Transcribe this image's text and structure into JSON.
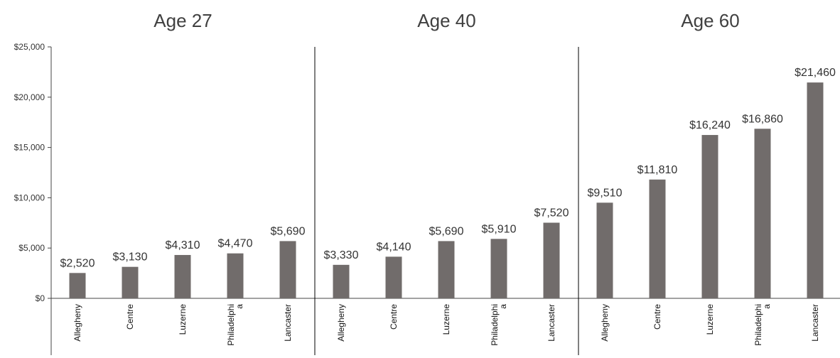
{
  "chart_data": {
    "type": "bar",
    "y_ticks": [
      "$0",
      "$5,000",
      "$10,000",
      "$15,000",
      "$20,000",
      "$25,000"
    ],
    "y_tick_values": [
      0,
      5000,
      10000,
      15000,
      20000,
      25000
    ],
    "ylim": [
      0,
      25000
    ],
    "grid": false,
    "bar_color": "#716c6b",
    "panels": [
      {
        "title": "Age 27",
        "categories": [
          "Allegheny",
          "Centre",
          "Luzerne",
          "Philadelphia",
          "Lancaster"
        ],
        "category_label_lines": [
          [
            "Allegheny"
          ],
          [
            "Centre"
          ],
          [
            "Luzerne"
          ],
          [
            "Philadelphi",
            "a"
          ],
          [
            "Lancaster"
          ]
        ],
        "values": [
          2520,
          3130,
          4310,
          4470,
          5690
        ],
        "value_labels": [
          "$2,520",
          "$3,130",
          "$4,310",
          "$4,470",
          "$5,690"
        ]
      },
      {
        "title": "Age 40",
        "categories": [
          "Allegheny",
          "Centre",
          "Luzerne",
          "Philadelphia",
          "Lancaster"
        ],
        "category_label_lines": [
          [
            "Allegheny"
          ],
          [
            "Centre"
          ],
          [
            "Luzerne"
          ],
          [
            "Philadelphi",
            "a"
          ],
          [
            "Lancaster"
          ]
        ],
        "values": [
          3330,
          4140,
          5690,
          5910,
          7520
        ],
        "value_labels": [
          "$3,330",
          "$4,140",
          "$5,690",
          "$5,910",
          "$7,520"
        ]
      },
      {
        "title": "Age 60",
        "categories": [
          "Allegheny",
          "Centre",
          "Luzerne",
          "Philadelphia",
          "Lancaster"
        ],
        "category_label_lines": [
          [
            "Allegheny"
          ],
          [
            "Centre"
          ],
          [
            "Luzerne"
          ],
          [
            "Philadelphi",
            "a"
          ],
          [
            "Lancaster"
          ]
        ],
        "values": [
          9510,
          11810,
          16240,
          16860,
          21460
        ],
        "value_labels": [
          "$9,510",
          "$11,810",
          "$16,240",
          "$16,860",
          "$21,460"
        ]
      }
    ]
  }
}
